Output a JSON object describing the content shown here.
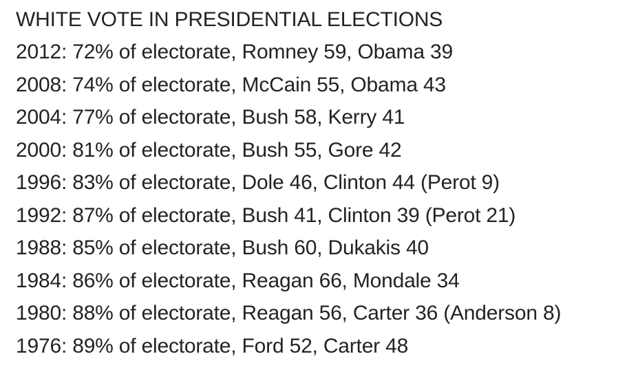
{
  "document": {
    "title": "WHITE VOTE IN PRESIDENTIAL ELECTIONS",
    "lines": [
      "2012: 72% of electorate, Romney 59, Obama 39",
      "2008: 74% of electorate, McCain 55, Obama 43",
      "2004: 77% of electorate, Bush 58, Kerry 41",
      "2000: 81% of electorate, Bush 55, Gore 42",
      "1996: 83% of electorate, Dole 46, Clinton 44 (Perot 9)",
      "1992: 87% of electorate, Bush 41, Clinton 39 (Perot 21)",
      "1988: 85% of electorate, Bush 60, Dukakis 40",
      "1984: 86% of electorate, Reagan 66, Mondale 34",
      "1980: 88% of electorate, Reagan 56, Carter 36 (Anderson 8)",
      "1976: 89% of electorate, Ford 52, Carter 48"
    ],
    "colors": {
      "text": "#232323",
      "background": "#ffffff"
    }
  }
}
